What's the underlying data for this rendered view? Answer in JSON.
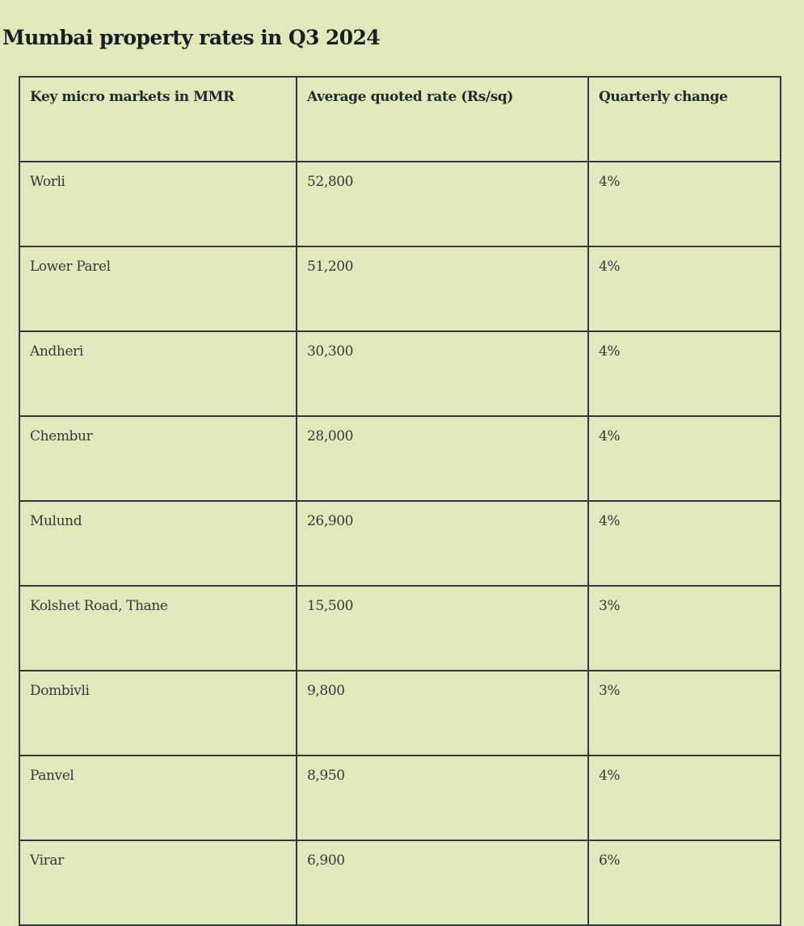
{
  "title": "Mumbai property rates in Q3 2024",
  "table": {
    "headers": [
      "Key micro markets in MMR",
      "Average quoted rate (Rs/sq)",
      "Quarterly change"
    ],
    "rows": [
      [
        "Worli",
        "52,800",
        "4%"
      ],
      [
        "Lower Parel",
        "51,200",
        "4%"
      ],
      [
        "Andheri",
        "30,300",
        "4%"
      ],
      [
        "Chembur",
        "28,000",
        "4%"
      ],
      [
        "Mulund",
        "26,900",
        "4%"
      ],
      [
        "Kolshet Road, Thane",
        "15,500",
        "3%"
      ],
      [
        "Dombivli",
        "9,800",
        "3%"
      ],
      [
        "Panvel",
        "8,950",
        "4%"
      ],
      [
        "Virar",
        "6,900",
        "6%"
      ]
    ]
  }
}
